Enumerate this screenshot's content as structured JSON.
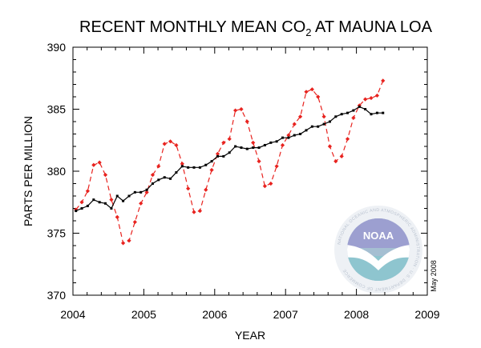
{
  "chart_data": {
    "type": "line",
    "title": "RECENT MONTHLY MEAN CO",
    "title_subscript": "2",
    "title_suffix": " AT MAUNA LOA",
    "xlabel": "YEAR",
    "ylabel": "PARTS PER MILLION",
    "date_stamp": "May 2008",
    "logo_text": "NOAA",
    "logo_ring_text": "NATIONAL OCEANIC AND ATMOSPHERIC ADMINISTRATION · U.S. DEPARTMENT OF COMMERCE",
    "xlim": [
      2004,
      2009
    ],
    "ylim": [
      370,
      390
    ],
    "x_ticks": [
      2004,
      2005,
      2006,
      2007,
      2008,
      2009
    ],
    "y_ticks": [
      370,
      375,
      380,
      385,
      390
    ],
    "grid": false,
    "series": [
      {
        "color": "#e8231f",
        "style": "dashed",
        "marker": "diamond",
        "x": [
          2004.042,
          2004.125,
          2004.208,
          2004.292,
          2004.375,
          2004.458,
          2004.542,
          2004.625,
          2004.708,
          2004.792,
          2004.875,
          2004.958,
          2005.042,
          2005.125,
          2005.208,
          2005.292,
          2005.375,
          2005.458,
          2005.542,
          2005.625,
          2005.708,
          2005.792,
          2005.875,
          2005.958,
          2006.042,
          2006.125,
          2006.208,
          2006.292,
          2006.375,
          2006.458,
          2006.542,
          2006.625,
          2006.708,
          2006.792,
          2006.875,
          2006.958,
          2007.042,
          2007.125,
          2007.208,
          2007.292,
          2007.375,
          2007.458,
          2007.542,
          2007.625,
          2007.708,
          2007.792,
          2007.875,
          2007.958,
          2008.042,
          2008.125,
          2008.208,
          2008.292,
          2008.375
        ],
        "values": [
          376.9,
          377.5,
          378.4,
          380.5,
          380.7,
          379.7,
          377.7,
          376.3,
          374.2,
          374.4,
          375.9,
          377.4,
          378.3,
          379.7,
          380.4,
          382.2,
          382.4,
          382.1,
          380.6,
          378.6,
          376.7,
          376.8,
          378.5,
          380.1,
          381.4,
          382.3,
          382.6,
          384.9,
          385.0,
          384.0,
          382.3,
          380.8,
          378.8,
          379.0,
          380.4,
          382.1,
          382.9,
          383.8,
          384.4,
          386.4,
          386.6,
          386.0,
          384.4,
          382.0,
          380.8,
          381.2,
          382.6,
          384.3,
          385.3,
          385.8,
          385.9,
          386.1,
          387.3
        ]
      },
      {
        "color": "#000000",
        "style": "solid",
        "marker": "square",
        "x": [
          2004.042,
          2004.125,
          2004.208,
          2004.292,
          2004.375,
          2004.458,
          2004.542,
          2004.625,
          2004.708,
          2004.792,
          2004.875,
          2004.958,
          2005.042,
          2005.125,
          2005.208,
          2005.292,
          2005.375,
          2005.458,
          2005.542,
          2005.625,
          2005.708,
          2005.792,
          2005.875,
          2005.958,
          2006.042,
          2006.125,
          2006.208,
          2006.292,
          2006.375,
          2006.458,
          2006.542,
          2006.625,
          2006.708,
          2006.792,
          2006.875,
          2006.958,
          2007.042,
          2007.125,
          2007.208,
          2007.292,
          2007.375,
          2007.458,
          2007.542,
          2007.625,
          2007.708,
          2007.792,
          2007.875,
          2007.958,
          2008.042,
          2008.125,
          2008.208,
          2008.292,
          2008.375
        ],
        "values": [
          376.8,
          377.0,
          377.2,
          377.7,
          377.5,
          377.4,
          377.0,
          378.0,
          377.6,
          378.0,
          378.3,
          378.3,
          378.5,
          379.0,
          379.3,
          379.5,
          379.4,
          379.9,
          380.4,
          380.3,
          380.3,
          380.3,
          380.5,
          380.8,
          381.2,
          381.2,
          381.5,
          382.0,
          381.9,
          381.8,
          381.9,
          381.9,
          382.1,
          382.3,
          382.4,
          382.7,
          382.7,
          382.9,
          383.0,
          383.3,
          383.6,
          383.6,
          383.8,
          384.0,
          384.4,
          384.6,
          384.7,
          384.9,
          385.2,
          385.0,
          384.6,
          384.7,
          384.7
        ]
      }
    ]
  }
}
